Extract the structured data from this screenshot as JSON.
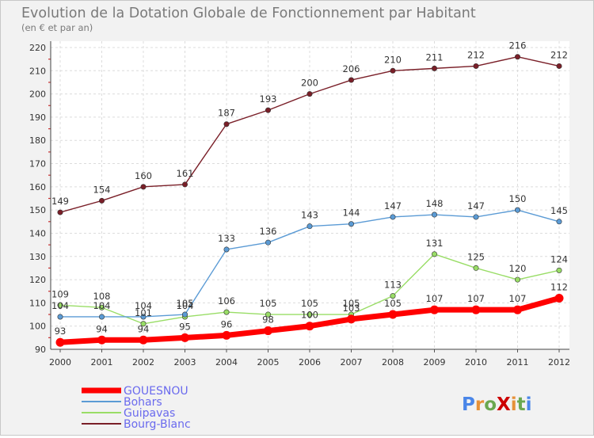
{
  "chart_data": {
    "type": "line",
    "title": "Evolution de la Dotation Globale de Fonctionnement par Habitant",
    "subtitle": "(en € et par an)",
    "x": [
      "2000",
      "2001",
      "2002",
      "2003",
      "2004",
      "2005",
      "2006",
      "2007",
      "2008",
      "2009",
      "2010",
      "2011",
      "2012"
    ],
    "ylim": [
      90,
      220
    ],
    "yticks": [
      90,
      100,
      110,
      120,
      130,
      140,
      150,
      160,
      170,
      180,
      190,
      200,
      210,
      220
    ],
    "grid": true,
    "legend_position": "bottom-left",
    "series": [
      {
        "name": "GOUESNOU",
        "color": "#ff0000",
        "values": [
          93,
          94,
          94,
          95,
          96,
          98,
          100,
          103,
          105,
          107,
          107,
          107,
          112
        ]
      },
      {
        "name": "Bohars",
        "color": "#5b9bd5",
        "values": [
          104,
          104,
          104,
          105,
          133,
          136,
          143,
          144,
          147,
          148,
          147,
          150,
          145
        ]
      },
      {
        "name": "Guipavas",
        "color": "#99dd66",
        "values": [
          109,
          108,
          101,
          104,
          106,
          105,
          105,
          105,
          113,
          131,
          125,
          120,
          124
        ]
      },
      {
        "name": "Bourg-Blanc",
        "color": "#7a1f28",
        "values": [
          149,
          154,
          160,
          161,
          187,
          193,
          200,
          206,
          210,
          211,
          212,
          216,
          212
        ]
      }
    ]
  },
  "logo": {
    "text": "ProXiti"
  }
}
